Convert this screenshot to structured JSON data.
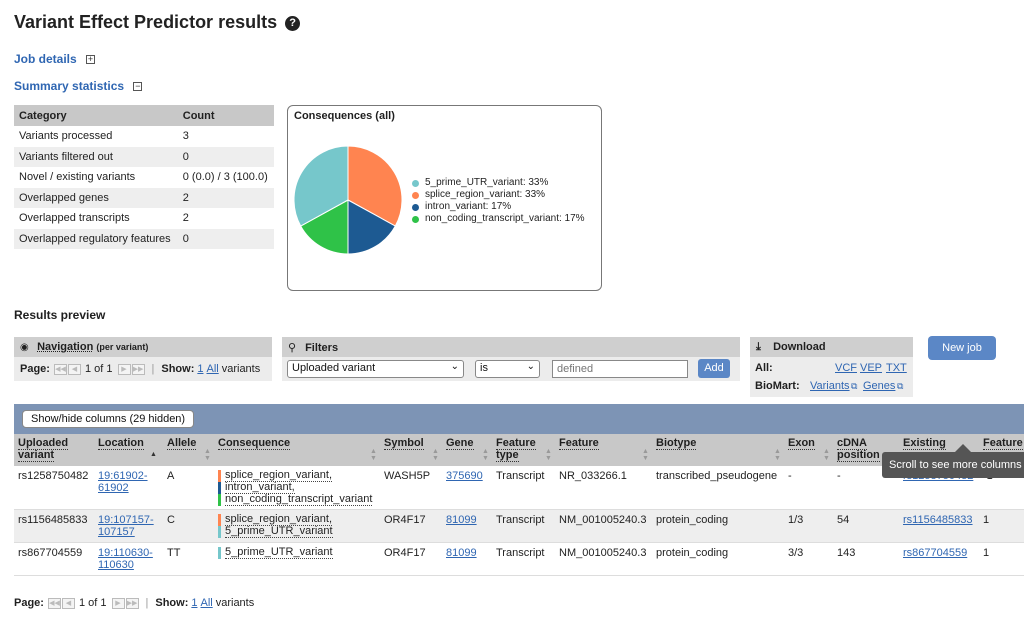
{
  "header": {
    "title": "Variant Effect Predictor results",
    "help_icon": "?"
  },
  "sections": {
    "job_details": "Job details",
    "job_details_toggle": "+",
    "summary_statistics": "Summary statistics",
    "summary_toggle": "−"
  },
  "summary": {
    "headers": [
      "Category",
      "Count"
    ],
    "rows": [
      [
        "Variants processed",
        "3"
      ],
      [
        "Variants filtered out",
        "0"
      ],
      [
        "Novel / existing variants",
        "0 (0.0) / 3 (100.0)"
      ],
      [
        "Overlapped genes",
        "2"
      ],
      [
        "Overlapped transcripts",
        "2"
      ],
      [
        "Overlapped regulatory features",
        "0"
      ]
    ]
  },
  "consequences": {
    "title": "Consequences (all)",
    "legend": [
      "5_prime_UTR_variant: 33%",
      "splice_region_variant: 33%",
      "intron_variant: 17%",
      "non_coding_transcript_variant: 17%"
    ],
    "colors": [
      "#76c7cb",
      "#ff8450",
      "#1d5a92",
      "#2fc248"
    ]
  },
  "chart_data": {
    "type": "pie",
    "title": "Consequences (all)",
    "categories": [
      "5_prime_UTR_variant",
      "splice_region_variant",
      "intron_variant",
      "non_coding_transcript_variant"
    ],
    "values": [
      33,
      33,
      17,
      17
    ],
    "legend": "right"
  },
  "results": {
    "title": "Results preview",
    "navigation": {
      "title": "Navigation",
      "subtitle": "(per variant)",
      "page_label": "Page:",
      "page_of": "1 of 1",
      "show_label": "Show:",
      "show_1": "1",
      "show_all": "All",
      "show_suffix": "variants"
    },
    "filters": {
      "title": "Filters",
      "field": "Uploaded variant",
      "op": "is",
      "value_placeholder": "defined",
      "add": "Add"
    },
    "download": {
      "title": "Download",
      "all_label": "All:",
      "formats": [
        "VCF",
        "VEP",
        "TXT"
      ],
      "biomart_label": "BioMart:",
      "biomart_links": [
        "Variants",
        "Genes"
      ]
    },
    "new_job": "New job",
    "show_hide": "Show/hide columns (29 hidden)",
    "columns": [
      [
        "Uploaded",
        "variant"
      ],
      [
        "Location",
        ""
      ],
      [
        "Allele",
        ""
      ],
      [
        "Consequence",
        ""
      ],
      [
        "Symbol",
        ""
      ],
      [
        "Gene",
        ""
      ],
      [
        "Feature",
        "type"
      ],
      [
        "Feature",
        ""
      ],
      [
        "Biotype",
        ""
      ],
      [
        "Exon",
        ""
      ],
      [
        "cDNA",
        "position"
      ],
      [
        "Existing",
        ""
      ],
      [
        "Feature",
        ""
      ]
    ],
    "rows": [
      {
        "uploaded": "rs1258750482",
        "location": [
          "19:61902-",
          "61902"
        ],
        "allele": "A",
        "consequence": [
          "splice_region_variant,",
          "intron_variant,",
          "non_coding_transcript_variant"
        ],
        "symbol": "WASH5P",
        "gene": "375690",
        "feature_type": "Transcript",
        "feature": "NR_033266.1",
        "biotype": "transcribed_pseudogene",
        "exon": "-",
        "cdna": "-",
        "existing": "rs1258750482",
        "extra": "-1"
      },
      {
        "uploaded": "rs1156485833",
        "location": [
          "19:107157-",
          "107157"
        ],
        "allele": "C",
        "consequence": [
          "splice_region_variant,",
          "5_prime_UTR_variant"
        ],
        "symbol": "OR4F17",
        "gene": "81099",
        "feature_type": "Transcript",
        "feature": "NM_001005240.3",
        "biotype": "protein_coding",
        "exon": "1/3",
        "cdna": "54",
        "existing": "rs1156485833",
        "extra": "1"
      },
      {
        "uploaded": "rs867704559",
        "location": [
          "19:110630-",
          "110630"
        ],
        "allele": "TT",
        "consequence": [
          "5_prime_UTR_variant"
        ],
        "symbol": "OR4F17",
        "gene": "81099",
        "feature_type": "Transcript",
        "feature": "NM_001005240.3",
        "biotype": "protein_coding",
        "exon": "3/3",
        "cdna": "143",
        "existing": "rs867704559",
        "extra": "1"
      }
    ],
    "tooltip": "Scroll to see more columns"
  }
}
